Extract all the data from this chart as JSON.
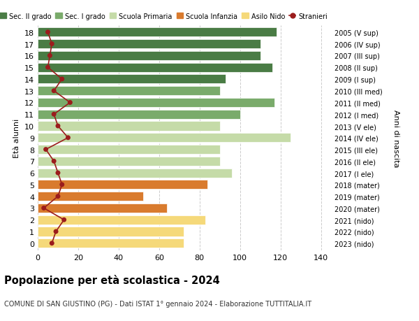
{
  "ages": [
    18,
    17,
    16,
    15,
    14,
    13,
    12,
    11,
    10,
    9,
    8,
    7,
    6,
    5,
    4,
    3,
    2,
    1,
    0
  ],
  "bar_values": [
    118,
    110,
    110,
    116,
    93,
    90,
    117,
    100,
    90,
    125,
    90,
    90,
    96,
    84,
    52,
    64,
    83,
    72,
    72
  ],
  "stranieri_values": [
    5,
    7,
    6,
    5,
    12,
    8,
    16,
    8,
    10,
    15,
    4,
    8,
    10,
    12,
    10,
    3,
    13,
    9,
    7
  ],
  "bar_colors": [
    "#4a7c45",
    "#4a7c45",
    "#4a7c45",
    "#4a7c45",
    "#4a7c45",
    "#7aab6b",
    "#7aab6b",
    "#7aab6b",
    "#c5dba8",
    "#c5dba8",
    "#c5dba8",
    "#c5dba8",
    "#c5dba8",
    "#d97b2e",
    "#d97b2e",
    "#d97b2e",
    "#f5d97a",
    "#f5d97a",
    "#f5d97a"
  ],
  "right_labels": [
    "2005 (V sup)",
    "2006 (IV sup)",
    "2007 (III sup)",
    "2008 (II sup)",
    "2009 (I sup)",
    "2010 (III med)",
    "2011 (II med)",
    "2012 (I med)",
    "2013 (V ele)",
    "2014 (IV ele)",
    "2015 (III ele)",
    "2016 (II ele)",
    "2017 (I ele)",
    "2018 (mater)",
    "2019 (mater)",
    "2020 (mater)",
    "2021 (nido)",
    "2022 (nido)",
    "2023 (nido)"
  ],
  "legend_labels": [
    "Sec. II grado",
    "Sec. I grado",
    "Scuola Primaria",
    "Scuola Infanzia",
    "Asilo Nido",
    "Stranieri"
  ],
  "legend_colors": [
    "#4a7c45",
    "#7aab6b",
    "#c5dba8",
    "#d97b2e",
    "#f5d97a",
    "#9b1c1c"
  ],
  "stranieri_color": "#9b1c1c",
  "title": "Popolazione per età scolastica - 2024",
  "subtitle": "COMUNE DI SAN GIUSTINO (PG) - Dati ISTAT 1° gennaio 2024 - Elaborazione TUTTITALIA.IT",
  "ylabel": "Età alunni",
  "right_ylabel": "Anni di nascita",
  "xlim": [
    0,
    145
  ],
  "xticks": [
    0,
    20,
    40,
    60,
    80,
    100,
    120,
    140
  ],
  "background_color": "#ffffff",
  "grid_color": "#cccccc"
}
